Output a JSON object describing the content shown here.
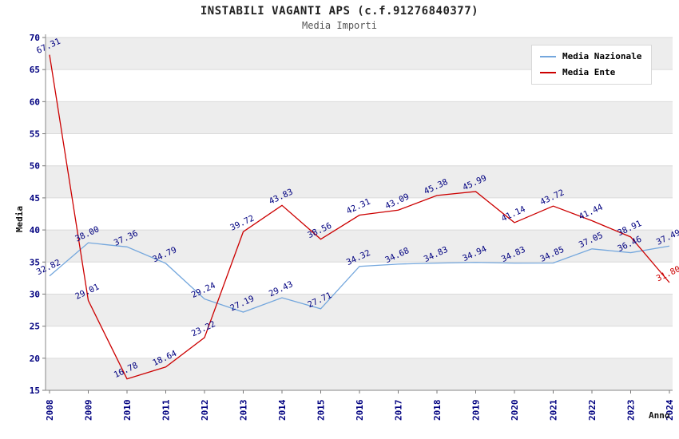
{
  "title": "INSTABILI VAGANTI APS (c.f.91276840377)",
  "subtitle": "Media Importi",
  "legend": {
    "items": [
      {
        "label": "Media Nazionale"
      },
      {
        "label": "Media Ente"
      }
    ]
  },
  "chart_data": {
    "type": "line",
    "x": [
      2008,
      2009,
      2010,
      2011,
      2012,
      2013,
      2014,
      2015,
      2016,
      2017,
      2018,
      2019,
      2020,
      2021,
      2022,
      2023,
      2024
    ],
    "series": [
      {
        "name": "Media Nazionale",
        "color": "#74a7dd",
        "values": [
          32.82,
          38.0,
          37.36,
          34.79,
          29.24,
          27.19,
          29.43,
          27.71,
          34.32,
          34.68,
          34.83,
          34.94,
          34.83,
          34.85,
          37.05,
          36.46,
          37.49
        ]
      },
      {
        "name": "Media Ente",
        "color": "#cc0000",
        "values": [
          67.31,
          29.01,
          16.78,
          18.64,
          23.22,
          39.72,
          43.83,
          38.56,
          42.31,
          43.09,
          45.38,
          45.99,
          41.14,
          43.72,
          41.44,
          38.91,
          31.8
        ],
        "label_color_overrides": {
          "16": "#cc0000"
        }
      }
    ],
    "title": "INSTABILI VAGANTI APS (c.f.91276840377)",
    "subtitle": "Media Importi",
    "xlabel": "Anno",
    "ylabel": "Media",
    "ylim": [
      15,
      70
    ],
    "ytick_step": 5,
    "grid": true,
    "legend_position": "top-right",
    "label_color": "#000080",
    "tick_color": "#000080",
    "stripe_color": "#ededed",
    "grid_color": "#dadada"
  }
}
